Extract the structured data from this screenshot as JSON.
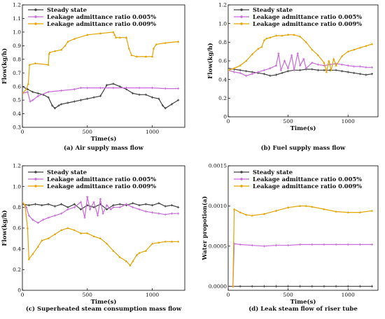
{
  "colors": {
    "steady": "#404040",
    "s1": "#c76bd8",
    "s2": "#e3a400"
  },
  "chart_data": [
    {
      "type": "line",
      "caption": "(a) Air supply mass flow",
      "xlabel": "Time(s)",
      "ylabel": "Flow(kg/h)",
      "xlim": [
        0,
        1250
      ],
      "ylim": [
        0.3,
        1.2
      ],
      "xticks": [
        0,
        500,
        1000
      ],
      "yticks": [
        0.3,
        0.4,
        0.5,
        0.6,
        0.7,
        0.8,
        0.9,
        1.0,
        1.1,
        1.2
      ],
      "ytick_labels": [
        "0.3",
        "0.4",
        "0.5",
        "0.6",
        "0.7",
        "0.8",
        "0.9",
        "1.0",
        "1.1",
        "1.2"
      ],
      "legend_position": "top-left",
      "series": [
        {
          "name": "Steady state",
          "color": "#404040",
          "marker": "star",
          "x": [
            0,
            40,
            80,
            120,
            160,
            200,
            230,
            250,
            280,
            300,
            350,
            400,
            450,
            500,
            550,
            600,
            650,
            700,
            750,
            800,
            850,
            900,
            950,
            1000,
            1050,
            1080,
            1100,
            1150,
            1200
          ],
          "y": [
            0.6,
            0.58,
            0.56,
            0.55,
            0.54,
            0.52,
            0.46,
            0.44,
            0.46,
            0.47,
            0.48,
            0.49,
            0.5,
            0.51,
            0.52,
            0.53,
            0.61,
            0.62,
            0.6,
            0.58,
            0.55,
            0.54,
            0.54,
            0.52,
            0.51,
            0.46,
            0.44,
            0.47,
            0.5
          ]
        },
        {
          "name": "Leakage admittance ratio 0.005%",
          "color": "#c76bd8",
          "marker": "star",
          "x": [
            0,
            40,
            60,
            80,
            120,
            200,
            300,
            400,
            450,
            500,
            600,
            700,
            800,
            900,
            1000,
            1100,
            1200
          ],
          "y": [
            0.55,
            0.56,
            0.49,
            0.5,
            0.53,
            0.56,
            0.57,
            0.58,
            0.59,
            0.59,
            0.59,
            0.59,
            0.59,
            0.59,
            0.59,
            0.585,
            0.585
          ]
        },
        {
          "name": "Leakage admittance ratio 0.009%",
          "color": "#e3a400",
          "marker": "triangle",
          "x": [
            0,
            30,
            45,
            55,
            100,
            200,
            205,
            210,
            250,
            300,
            330,
            350,
            400,
            500,
            600,
            700,
            710,
            720,
            750,
            800,
            820,
            840,
            880,
            950,
            1000,
            1010,
            1030,
            1100,
            1200
          ],
          "y": [
            0.55,
            0.58,
            0.62,
            0.76,
            0.77,
            0.76,
            0.84,
            0.85,
            0.86,
            0.87,
            0.9,
            0.93,
            0.95,
            0.98,
            0.99,
            1.0,
            0.98,
            0.96,
            0.96,
            0.96,
            0.88,
            0.83,
            0.82,
            0.82,
            0.82,
            0.88,
            0.91,
            0.92,
            0.93
          ]
        }
      ]
    },
    {
      "type": "line",
      "caption": "(b) Fuel supply mass flow",
      "xlabel": "Time(s)",
      "ylabel": "Flow(kg/h)",
      "xlim": [
        0,
        1250
      ],
      "ylim": [
        0,
        1.2
      ],
      "xticks": [
        0,
        500,
        1000
      ],
      "yticks": [
        0,
        0.2,
        0.4,
        0.6,
        0.8,
        1.0,
        1.2
      ],
      "ytick_labels": [
        "0",
        "0.2",
        "0.4",
        "0.6",
        "0.8",
        "1.0",
        "1.2"
      ],
      "legend_position": "top-left",
      "series": [
        {
          "name": "Steady state",
          "color": "#404040",
          "marker": "star",
          "x": [
            0,
            50,
            100,
            150,
            200,
            250,
            300,
            350,
            400,
            450,
            500,
            550,
            600,
            650,
            700,
            750,
            800,
            850,
            900,
            950,
            1000,
            1050,
            1100,
            1150,
            1200
          ],
          "y": [
            0.52,
            0.51,
            0.5,
            0.49,
            0.48,
            0.47,
            0.46,
            0.44,
            0.45,
            0.47,
            0.49,
            0.5,
            0.5,
            0.51,
            0.51,
            0.5,
            0.5,
            0.5,
            0.5,
            0.49,
            0.48,
            0.47,
            0.46,
            0.45,
            0.46
          ]
        },
        {
          "name": "Leakage admittance ratio 0.005%",
          "color": "#c76bd8",
          "marker": "star",
          "x": [
            0,
            50,
            100,
            150,
            200,
            250,
            300,
            350,
            400,
            420,
            440,
            470,
            500,
            530,
            550,
            580,
            600,
            630,
            650,
            700,
            750,
            800,
            850,
            900,
            950,
            1000,
            1050,
            1100,
            1150,
            1200
          ],
          "y": [
            0.5,
            0.48,
            0.47,
            0.44,
            0.46,
            0.48,
            0.5,
            0.52,
            0.55,
            0.68,
            0.5,
            0.6,
            0.52,
            0.66,
            0.5,
            0.68,
            0.55,
            0.62,
            0.52,
            0.58,
            0.56,
            0.55,
            0.56,
            0.57,
            0.56,
            0.55,
            0.54,
            0.54,
            0.53,
            0.53
          ]
        },
        {
          "name": "Leakage admittance ratio 0.009%",
          "color": "#e3a400",
          "marker": "triangle",
          "x": [
            0,
            50,
            100,
            150,
            200,
            250,
            280,
            300,
            320,
            350,
            400,
            450,
            500,
            550,
            600,
            650,
            700,
            750,
            800,
            820,
            840,
            860,
            880,
            900,
            950,
            1000,
            1050,
            1100,
            1150,
            1200
          ],
          "y": [
            0.5,
            0.52,
            0.55,
            0.6,
            0.67,
            0.73,
            0.75,
            0.82,
            0.84,
            0.85,
            0.87,
            0.87,
            0.88,
            0.88,
            0.86,
            0.8,
            0.72,
            0.66,
            0.58,
            0.48,
            0.6,
            0.5,
            0.62,
            0.55,
            0.65,
            0.7,
            0.72,
            0.74,
            0.76,
            0.78
          ]
        }
      ]
    },
    {
      "type": "line",
      "caption": "(c) Superheated steam consumption mass flow",
      "xlabel": "Time(s)",
      "ylabel": "Flow(kg/h)",
      "xlim": [
        0,
        1250
      ],
      "ylim": [
        0,
        1.2
      ],
      "xticks": [
        0,
        500,
        1000
      ],
      "yticks": [
        0,
        0.2,
        0.4,
        0.6,
        0.8,
        1.0,
        1.2
      ],
      "ytick_labels": [
        "0",
        "0.2",
        "0.4",
        "0.6",
        "0.8",
        "1.0",
        "1.2"
      ],
      "legend_position": "top-left",
      "series": [
        {
          "name": "Steady state",
          "color": "#404040",
          "marker": "star",
          "x": [
            0,
            50,
            100,
            150,
            200,
            250,
            300,
            350,
            400,
            450,
            500,
            550,
            600,
            650,
            700,
            750,
            800,
            850,
            900,
            950,
            1000,
            1050,
            1100,
            1150,
            1200
          ],
          "y": [
            0.83,
            0.82,
            0.83,
            0.82,
            0.83,
            0.81,
            0.83,
            0.8,
            0.83,
            0.78,
            0.82,
            0.8,
            0.83,
            0.78,
            0.82,
            0.83,
            0.82,
            0.84,
            0.82,
            0.83,
            0.82,
            0.84,
            0.81,
            0.82,
            0.8
          ]
        },
        {
          "name": "Leakage admittance ratio 0.005%",
          "color": "#c76bd8",
          "marker": "star",
          "x": [
            0,
            30,
            50,
            80,
            120,
            160,
            200,
            250,
            300,
            350,
            400,
            450,
            480,
            500,
            520,
            550,
            580,
            600,
            620,
            650,
            680,
            700,
            750,
            800,
            850,
            900,
            950,
            1000,
            1050,
            1100,
            1150,
            1200
          ],
          "y": [
            0.85,
            0.8,
            0.72,
            0.68,
            0.65,
            0.68,
            0.7,
            0.72,
            0.74,
            0.78,
            0.8,
            0.85,
            0.7,
            0.9,
            0.78,
            0.85,
            0.72,
            0.88,
            0.74,
            0.82,
            0.78,
            0.8,
            0.8,
            0.83,
            0.8,
            0.78,
            0.76,
            0.75,
            0.74,
            0.73,
            0.74,
            0.74
          ]
        },
        {
          "name": "Leakage admittance ratio 0.009%",
          "color": "#e3a400",
          "marker": "triangle",
          "x": [
            0,
            20,
            40,
            50,
            80,
            120,
            150,
            200,
            250,
            300,
            350,
            400,
            450,
            500,
            550,
            600,
            650,
            700,
            750,
            800,
            830,
            850,
            880,
            900,
            950,
            1000,
            1050,
            1100,
            1150,
            1200
          ],
          "y": [
            0.85,
            0.82,
            0.6,
            0.3,
            0.35,
            0.42,
            0.48,
            0.5,
            0.54,
            0.58,
            0.6,
            0.58,
            0.55,
            0.55,
            0.52,
            0.5,
            0.45,
            0.38,
            0.32,
            0.28,
            0.24,
            0.28,
            0.34,
            0.36,
            0.38,
            0.45,
            0.46,
            0.47,
            0.47,
            0.47
          ]
        }
      ]
    },
    {
      "type": "line",
      "caption": "(d) Leak steam flow of riser tube",
      "xlabel": "Time(s)",
      "ylabel": "Water propotion(a)",
      "xlim": [
        0,
        1250
      ],
      "ylim": [
        -5e-05,
        0.0015
      ],
      "xticks": [
        0,
        500,
        1000
      ],
      "yticks": [
        0,
        0.0005,
        0.001,
        0.0015
      ],
      "ytick_labels": [
        "0.0000",
        "0.0005",
        "0.0010",
        "0.0015"
      ],
      "legend_position": "top-left",
      "series": [
        {
          "name": "Steady state",
          "color": "#404040",
          "marker": "star",
          "x": [
            0,
            100,
            200,
            300,
            400,
            500,
            600,
            700,
            800,
            900,
            1000,
            1100,
            1200
          ],
          "y": [
            0,
            0,
            0,
            0,
            0,
            0,
            0,
            0,
            0,
            0,
            0,
            0,
            0
          ]
        },
        {
          "name": "Leakage admittance ratio 0.005%",
          "color": "#c76bd8",
          "marker": "star",
          "x": [
            40,
            50,
            100,
            200,
            300,
            400,
            500,
            600,
            700,
            800,
            900,
            1000,
            1100,
            1200
          ],
          "y": [
            0,
            0.00053,
            0.00052,
            0.00051,
            0.0005,
            0.00051,
            0.00051,
            0.00052,
            0.00052,
            0.00052,
            0.00052,
            0.00052,
            0.00052,
            0.00052
          ]
        },
        {
          "name": "Leakage admittance ratio 0.009%",
          "color": "#e3a400",
          "marker": "triangle",
          "x": [
            40,
            50,
            100,
            150,
            200,
            300,
            400,
            500,
            600,
            650,
            700,
            800,
            900,
            1000,
            1100,
            1200
          ],
          "y": [
            0,
            0.00096,
            0.00092,
            0.00089,
            0.00088,
            0.0009,
            0.00094,
            0.00098,
            0.001,
            0.001,
            0.00099,
            0.00096,
            0.00093,
            0.00092,
            0.00092,
            0.00094
          ]
        }
      ]
    }
  ]
}
